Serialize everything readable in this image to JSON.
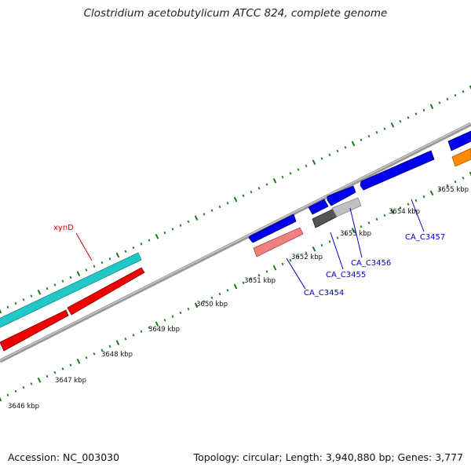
{
  "title": "Clostridium acetobutylicum ATCC 824, complete genome",
  "footer": {
    "accession": "Accession: NC_003030",
    "summary": "Topology: circular; Length: 3,940,880 bp; Genes: 3,777"
  },
  "scale": {
    "ticks": [
      "3646 kbp",
      "3647 kbp",
      "3648 kbp",
      "3649 kbp",
      "3650 kbp",
      "3651 kbp",
      "3652 kbp",
      "3653 kbp",
      "3654 kbp",
      "3655 kbp"
    ]
  },
  "gene_labels": [
    {
      "id": "xynD",
      "text": "xynD",
      "color": "#dd0000"
    },
    {
      "id": "ca-c3454",
      "text": "CA_C3454",
      "color": "#0000cc"
    },
    {
      "id": "ca-c3455",
      "text": "CA_C3455",
      "color": "#0000cc"
    },
    {
      "id": "ca-c3456",
      "text": "CA_C3456",
      "color": "#0000cc"
    },
    {
      "id": "ca-c3457",
      "text": "CA_C3457",
      "color": "#0000cc"
    }
  ],
  "colors": {
    "backbone": "#888888",
    "ticks": "#1a7a1a",
    "cds_forward": "#0000ee",
    "cds_reverse": "#ee0000",
    "rrna": "#22c8c8",
    "pseudo": "#f08080",
    "gray_light": "#c0c0c0",
    "gray_dark": "#555555",
    "orange": "#ff8c00"
  }
}
